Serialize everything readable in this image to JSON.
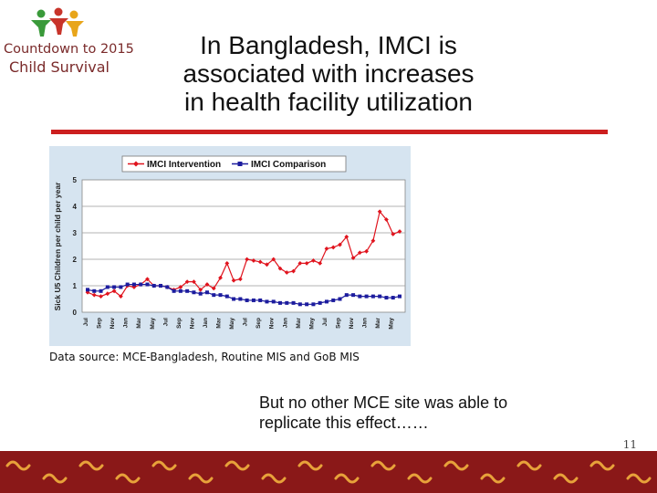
{
  "logo": {
    "line1": "Countdown to 2015",
    "line2": "Child Survival",
    "colors": {
      "green": "#3a9a3a",
      "red": "#c8342a",
      "orange": "#e88a1a",
      "yellow": "#e8c51a"
    }
  },
  "slide": {
    "title_lines": [
      "In Bangladesh, IMCI is",
      "associated with increases",
      "in health facility utilization"
    ],
    "source": "Data source: MCE-Bangladesh, Routine MIS and GoB MIS",
    "note_lines": [
      "But no other MCE site was able to",
      "replicate this effect……"
    ],
    "page_number": "11",
    "accent_color": "#cc1f1f",
    "footer_color": "#8a1818"
  },
  "chart_data": {
    "type": "line",
    "ylabel": "Sick U5 Children per child per year",
    "ylim": [
      0,
      5
    ],
    "yticks": [
      "0",
      "1",
      "2",
      "3",
      "4",
      "5"
    ],
    "xticks": [
      "Jul",
      "Sep",
      "Nov",
      "Jan",
      "Mar",
      "May",
      "Jul",
      "Sep",
      "Nov",
      "Jan",
      "Mar",
      "May",
      "Jul",
      "Sep",
      "Nov",
      "Jan",
      "Mar",
      "May",
      "Jul",
      "Sep",
      "Nov",
      "Jan",
      "Mar",
      "May"
    ],
    "legend_position": "top",
    "grid": true,
    "series": [
      {
        "name": "IMCI Intervention",
        "color": "#e0141e",
        "marker": "diamond",
        "values": [
          0.75,
          0.65,
          0.6,
          0.7,
          0.8,
          0.6,
          1.0,
          0.95,
          1.05,
          1.25,
          1.0,
          1.0,
          0.95,
          0.85,
          0.95,
          1.15,
          1.15,
          0.85,
          1.05,
          0.9,
          1.3,
          1.85,
          1.2,
          1.25,
          2.0,
          1.95,
          1.9,
          1.8,
          2.0,
          1.65,
          1.5,
          1.55,
          1.85,
          1.85,
          1.95,
          1.85,
          2.4,
          2.45,
          2.55,
          2.85,
          2.05,
          2.25,
          2.3,
          2.7,
          3.8,
          3.5,
          2.95,
          3.05
        ]
      },
      {
        "name": "IMCI Comparison",
        "color": "#1c1c9e",
        "marker": "square",
        "values": [
          0.85,
          0.8,
          0.8,
          0.95,
          0.95,
          0.95,
          1.05,
          1.05,
          1.05,
          1.05,
          1.0,
          1.0,
          0.95,
          0.8,
          0.8,
          0.8,
          0.75,
          0.7,
          0.75,
          0.65,
          0.65,
          0.6,
          0.5,
          0.5,
          0.45,
          0.45,
          0.45,
          0.4,
          0.4,
          0.35,
          0.35,
          0.35,
          0.3,
          0.3,
          0.3,
          0.35,
          0.4,
          0.45,
          0.5,
          0.65,
          0.65,
          0.6,
          0.6,
          0.6,
          0.6,
          0.55,
          0.55,
          0.6
        ]
      }
    ]
  }
}
